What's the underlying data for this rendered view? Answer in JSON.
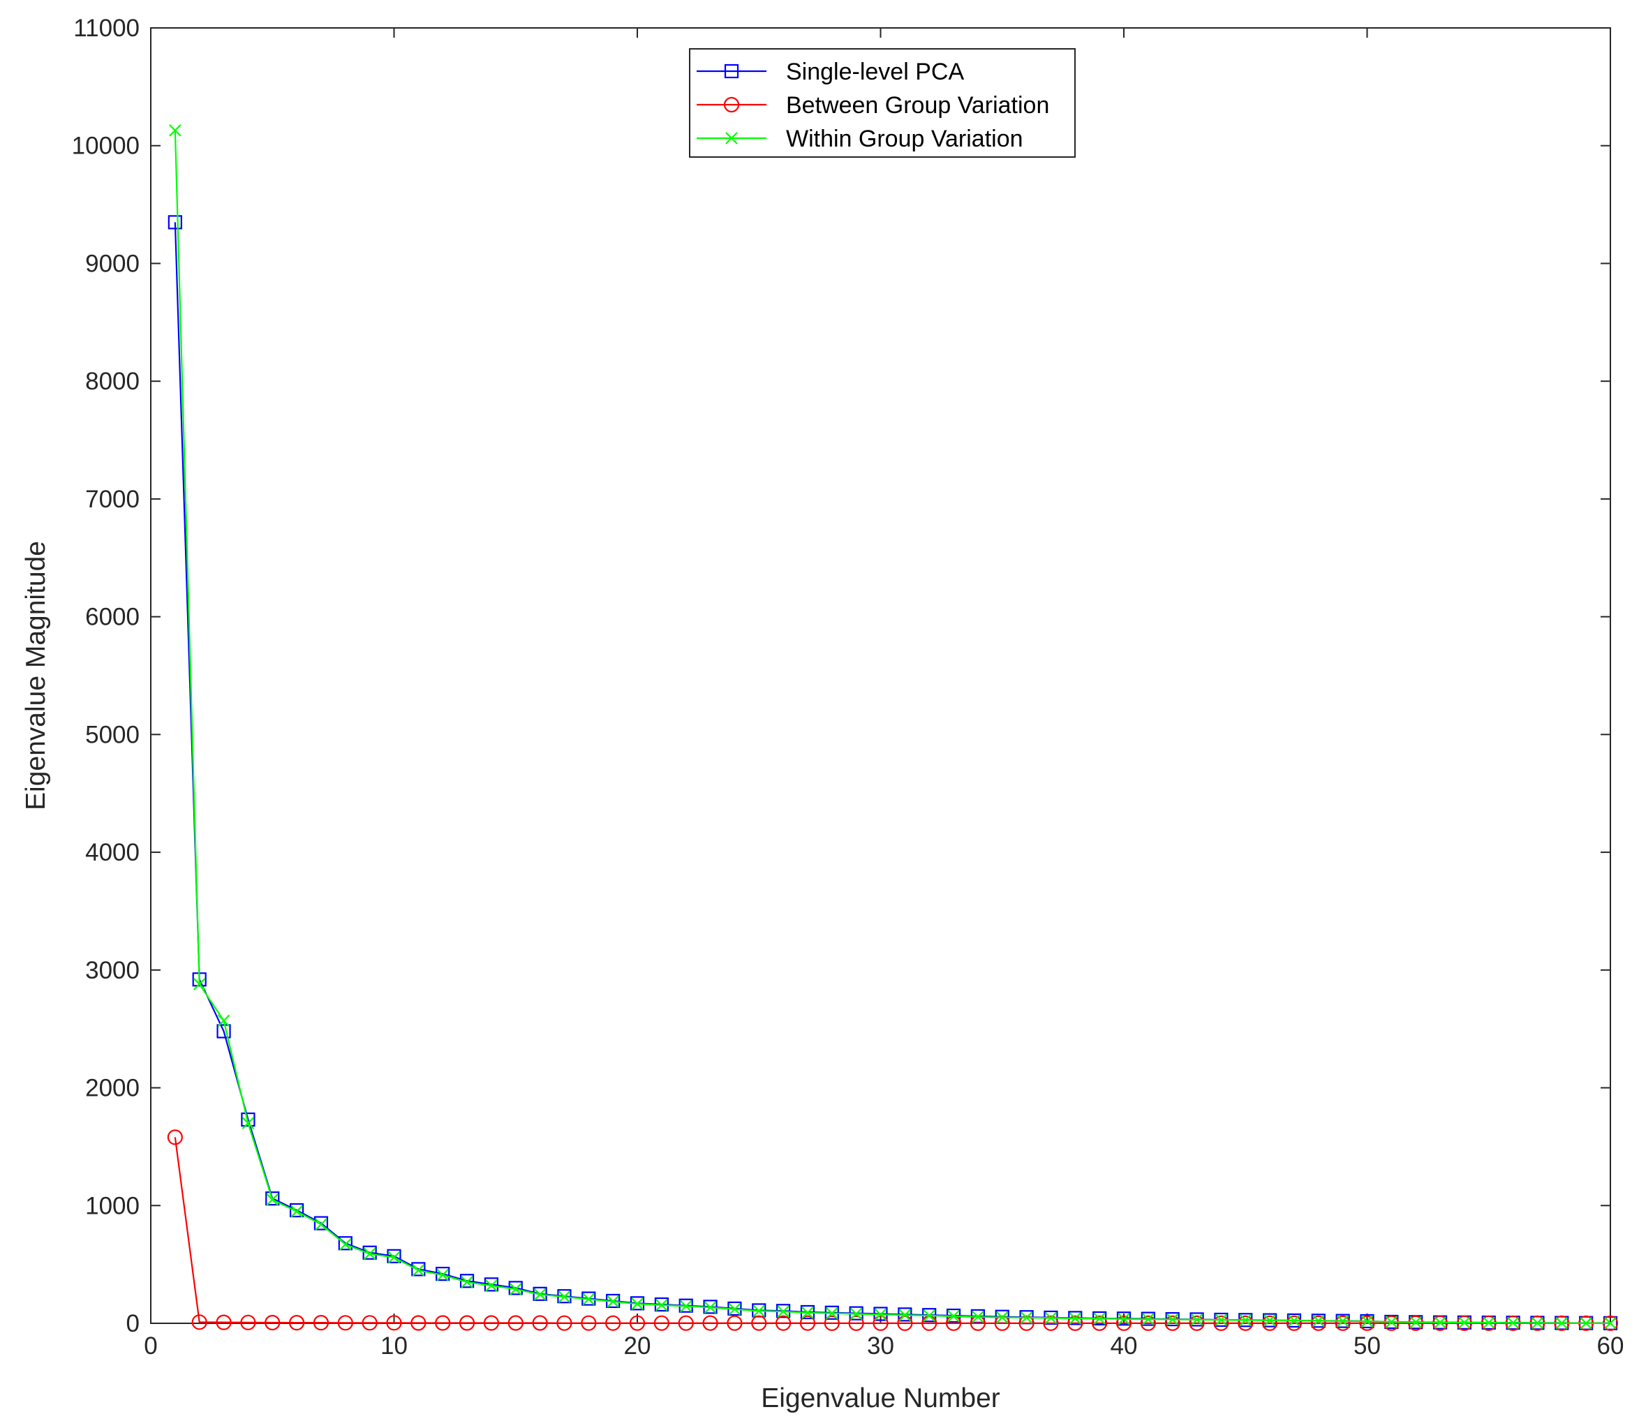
{
  "chart_data": {
    "type": "line",
    "title": "",
    "xlabel": "Eigenvalue Number",
    "ylabel": "Eigenvalue Magnitude",
    "xlim": [
      0,
      60
    ],
    "ylim": [
      0,
      11000
    ],
    "xticks": [
      0,
      10,
      20,
      30,
      40,
      50,
      60
    ],
    "yticks": [
      0,
      1000,
      2000,
      3000,
      4000,
      5000,
      6000,
      7000,
      8000,
      9000,
      10000,
      11000
    ],
    "grid": false,
    "legend_position": "top-center",
    "x": [
      1,
      2,
      3,
      4,
      5,
      6,
      7,
      8,
      9,
      10,
      11,
      12,
      13,
      14,
      15,
      16,
      17,
      18,
      19,
      20,
      21,
      22,
      23,
      24,
      25,
      26,
      27,
      28,
      29,
      30,
      31,
      32,
      33,
      34,
      35,
      36,
      37,
      38,
      39,
      40,
      41,
      42,
      43,
      44,
      45,
      46,
      47,
      48,
      49,
      50,
      51,
      52,
      53,
      54,
      55,
      56,
      57,
      58,
      59,
      60
    ],
    "series": [
      {
        "name": "Single-level PCA",
        "color": "#0000ff",
        "marker": "square",
        "values": [
          9350,
          2920,
          2480,
          1730,
          1060,
          960,
          850,
          680,
          600,
          570,
          460,
          420,
          360,
          330,
          300,
          250,
          230,
          210,
          190,
          170,
          160,
          150,
          140,
          125,
          110,
          105,
          95,
          90,
          85,
          80,
          75,
          70,
          65,
          60,
          55,
          52,
          48,
          45,
          42,
          40,
          38,
          35,
          33,
          30,
          28,
          26,
          24,
          22,
          20,
          18,
          12,
          10,
          8,
          7,
          6,
          5,
          4,
          3,
          2,
          1
        ]
      },
      {
        "name": "Between Group Variation",
        "color": "#ff0000",
        "marker": "circle",
        "values": [
          1580,
          10,
          8,
          7,
          6,
          5,
          5,
          4,
          4,
          4,
          3,
          3,
          3,
          3,
          3,
          3,
          2,
          2,
          2,
          2,
          2,
          2,
          2,
          2,
          2,
          2,
          2,
          1,
          1,
          1,
          1,
          1,
          1,
          1,
          1,
          1,
          1,
          1,
          1,
          1,
          1,
          1,
          1,
          1,
          1,
          1,
          1,
          1,
          1,
          1,
          1,
          1,
          1,
          1,
          1,
          1,
          1,
          1,
          1,
          1
        ]
      },
      {
        "name": "Within Group Variation",
        "color": "#00ff00",
        "marker": "x",
        "values": [
          10130,
          2880,
          2570,
          1700,
          1050,
          950,
          840,
          670,
          590,
          560,
          450,
          410,
          350,
          320,
          290,
          245,
          225,
          205,
          185,
          165,
          155,
          145,
          135,
          120,
          105,
          100,
          90,
          85,
          80,
          75,
          70,
          65,
          60,
          55,
          50,
          48,
          45,
          42,
          40,
          37,
          35,
          33,
          31,
          29,
          27,
          25,
          23,
          21,
          19,
          17,
          11,
          9,
          7,
          6,
          5,
          4,
          3,
          2,
          1,
          1
        ]
      }
    ]
  }
}
